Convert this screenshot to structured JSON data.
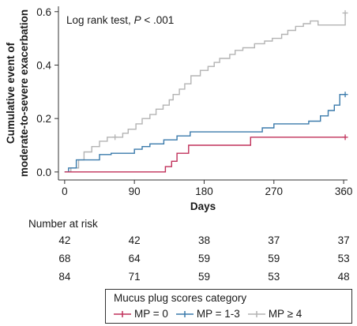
{
  "chart_data": {
    "type": "line",
    "annotation_prefix": "Log rank test, ",
    "annotation_p": "P",
    "annotation_suffix": " < .001",
    "xlabel": "Days",
    "ylabel_line1": "Cumulative event of",
    "ylabel_line2": "moderate-to-severe exacerbation",
    "xlim": [
      -8,
      365
    ],
    "ylim": [
      -0.03,
      0.62
    ],
    "xticks": [
      0,
      90,
      180,
      270,
      360
    ],
    "yticks": [
      0.0,
      0.2,
      0.4,
      0.6
    ],
    "ytick_labels": [
      "0.0",
      "0.2",
      "0.4",
      "0.6"
    ],
    "step": true,
    "censor_marker": "+",
    "series": [
      {
        "name": "MP = 0",
        "color": "#c0305a",
        "x": [
          0,
          130,
          130,
          138,
          138,
          145,
          145,
          160,
          160,
          240,
          240,
          362
        ],
        "y": [
          0.0,
          0.0,
          0.02,
          0.02,
          0.04,
          0.04,
          0.07,
          0.07,
          0.1,
          0.1,
          0.13,
          0.13
        ],
        "censored": [
          [
            362,
            0.13
          ]
        ]
      },
      {
        "name": "MP = 1-3",
        "color": "#3a7aab",
        "x": [
          0,
          5,
          5,
          15,
          15,
          45,
          45,
          60,
          60,
          90,
          90,
          100,
          100,
          110,
          110,
          128,
          128,
          145,
          145,
          162,
          162,
          255,
          255,
          270,
          270,
          315,
          315,
          330,
          330,
          340,
          340,
          348,
          348,
          355,
          355,
          362
        ],
        "y": [
          0.0,
          0.0,
          0.015,
          0.015,
          0.045,
          0.045,
          0.065,
          0.065,
          0.07,
          0.07,
          0.085,
          0.085,
          0.095,
          0.095,
          0.105,
          0.105,
          0.12,
          0.12,
          0.135,
          0.135,
          0.15,
          0.15,
          0.165,
          0.165,
          0.18,
          0.18,
          0.19,
          0.19,
          0.21,
          0.21,
          0.23,
          0.23,
          0.25,
          0.25,
          0.29,
          0.29
        ],
        "censored": [
          [
            362,
            0.29
          ]
        ]
      },
      {
        "name": "MP ≥ 4",
        "color": "#b3b3b3",
        "x": [
          0,
          8,
          8,
          18,
          18,
          25,
          25,
          35,
          35,
          45,
          45,
          55,
          55,
          75,
          75,
          82,
          82,
          92,
          92,
          100,
          100,
          110,
          110,
          118,
          118,
          127,
          127,
          135,
          135,
          140,
          140,
          148,
          148,
          155,
          155,
          163,
          163,
          175,
          175,
          185,
          185,
          193,
          193,
          200,
          200,
          213,
          213,
          220,
          220,
          230,
          230,
          245,
          245,
          258,
          258,
          268,
          268,
          280,
          280,
          288,
          288,
          298,
          298,
          308,
          308,
          317,
          317,
          327,
          327,
          342,
          342,
          362,
          362
        ],
        "y": [
          0.0,
          0.0,
          0.015,
          0.015,
          0.045,
          0.045,
          0.075,
          0.075,
          0.095,
          0.095,
          0.115,
          0.115,
          0.13,
          0.13,
          0.145,
          0.145,
          0.16,
          0.16,
          0.18,
          0.18,
          0.2,
          0.2,
          0.215,
          0.215,
          0.235,
          0.235,
          0.25,
          0.25,
          0.27,
          0.27,
          0.29,
          0.29,
          0.31,
          0.31,
          0.33,
          0.33,
          0.36,
          0.36,
          0.38,
          0.38,
          0.395,
          0.395,
          0.41,
          0.41,
          0.425,
          0.425,
          0.44,
          0.44,
          0.455,
          0.455,
          0.465,
          0.465,
          0.48,
          0.48,
          0.49,
          0.49,
          0.5,
          0.5,
          0.515,
          0.515,
          0.53,
          0.53,
          0.545,
          0.545,
          0.555,
          0.555,
          0.565,
          0.565,
          0.55,
          0.55,
          0.55,
          0.55,
          0.595
        ],
        "censored": [
          [
            65,
            0.13
          ],
          [
            362,
            0.595
          ]
        ]
      }
    ]
  },
  "risk_table": {
    "title": "Number at risk",
    "rows": [
      [
        "42",
        "42",
        "38",
        "37",
        "37"
      ],
      [
        "68",
        "64",
        "59",
        "59",
        "53"
      ],
      [
        "84",
        "71",
        "59",
        "53",
        "48"
      ]
    ]
  },
  "legend": {
    "title": "Mucus plug scores category",
    "items": [
      "MP = 0",
      "MP = 1-3",
      "MP ≥ 4"
    ]
  }
}
